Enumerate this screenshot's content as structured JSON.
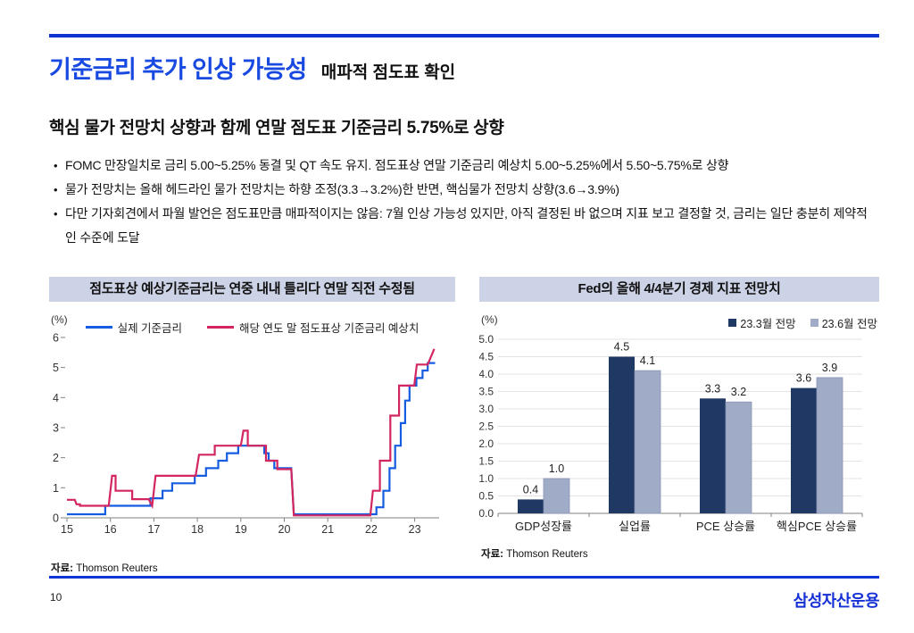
{
  "page": {
    "title": "기준금리 추가 인상 가능성",
    "subtitle": "매파적 점도표 확인",
    "heading": "핵심 물가 전망치 상향과 함께 연말 점도표 기준금리 5.75%로 상향",
    "bullets": [
      "FOMC 만장일치로 금리 5.00~5.25% 동결 및 QT 속도 유지.  점도표상 연말 기준금리 예상치 5.00~5.25%에서 5.50~5.75%로 상향",
      "물가 전망치는 올해 헤드라인 물가 전망치는 하향 조정(3.3→3.2%)한 반면, 핵심물가 전망치 상향(3.6→3.9%)",
      "다만 기자회견에서 파월 발언은 점도표만큼 매파적이지는 않음: 7월 인상 가능성 있지만, 아직 결정된 바 없으며 지표 보고 결정할 것, 금리는 일단 충분히 제약적인 수준에 도달"
    ],
    "page_number": "10",
    "logo_text": "삼성자산운용"
  },
  "colors": {
    "title_blue": "#1849e0",
    "rule_blue": "#0d35d6",
    "logo_blue": "#1531d6",
    "chart_header_bg": "#cdd3e6",
    "grid_gray": "#e3e3e3",
    "axis_gray": "#808080"
  },
  "chart_data": [
    {
      "type": "line",
      "title": "점도표상 예상기준금리는 연중 내내 틀리다 연말 직전 수정됨",
      "unit_label": "(%)",
      "source_label": "자료:",
      "source_name": "Thomson Reuters",
      "xlim": [
        14.95,
        23.6
      ],
      "ylim": [
        0,
        6
      ],
      "yticks": [
        0,
        1,
        2,
        3,
        4,
        5,
        6
      ],
      "xticks": [
        15,
        16,
        17,
        18,
        19,
        20,
        21,
        22,
        23
      ],
      "legend_position": "top-center",
      "grid": false,
      "series": [
        {
          "name": "실제 기준금리",
          "color": "#155ce0",
          "points": [
            [
              15.0,
              0.12
            ],
            [
              15.88,
              0.12
            ],
            [
              15.88,
              0.4
            ],
            [
              16.92,
              0.4
            ],
            [
              16.92,
              0.65
            ],
            [
              17.2,
              0.65
            ],
            [
              17.2,
              0.9
            ],
            [
              17.42,
              0.9
            ],
            [
              17.42,
              1.15
            ],
            [
              17.94,
              1.15
            ],
            [
              17.94,
              1.4
            ],
            [
              18.2,
              1.4
            ],
            [
              18.2,
              1.65
            ],
            [
              18.48,
              1.65
            ],
            [
              18.48,
              1.9
            ],
            [
              18.68,
              1.9
            ],
            [
              18.68,
              2.15
            ],
            [
              18.94,
              2.15
            ],
            [
              18.94,
              2.4
            ],
            [
              19.54,
              2.4
            ],
            [
              19.54,
              2.15
            ],
            [
              19.64,
              2.15
            ],
            [
              19.64,
              1.9
            ],
            [
              19.77,
              1.9
            ],
            [
              19.77,
              1.65
            ],
            [
              20.16,
              1.65
            ],
            [
              20.22,
              0.12
            ],
            [
              22.12,
              0.12
            ],
            [
              22.12,
              0.35
            ],
            [
              22.28,
              0.35
            ],
            [
              22.28,
              0.9
            ],
            [
              22.42,
              0.9
            ],
            [
              22.42,
              1.65
            ],
            [
              22.55,
              1.65
            ],
            [
              22.55,
              2.4
            ],
            [
              22.68,
              2.4
            ],
            [
              22.68,
              3.15
            ],
            [
              22.78,
              3.15
            ],
            [
              22.78,
              3.9
            ],
            [
              22.88,
              3.9
            ],
            [
              22.88,
              4.4
            ],
            [
              23.04,
              4.4
            ],
            [
              23.04,
              4.65
            ],
            [
              23.18,
              4.65
            ],
            [
              23.18,
              4.9
            ],
            [
              23.3,
              4.9
            ],
            [
              23.3,
              5.15
            ],
            [
              23.47,
              5.15
            ]
          ]
        },
        {
          "name": "해당 연도 말 점도표상 기준금리 예상치",
          "color": "#d3265f",
          "points": [
            [
              15.0,
              0.6
            ],
            [
              15.18,
              0.6
            ],
            [
              15.22,
              0.45
            ],
            [
              15.3,
              0.45
            ],
            [
              15.3,
              0.4
            ],
            [
              15.96,
              0.4
            ],
            [
              16.04,
              1.4
            ],
            [
              16.12,
              1.4
            ],
            [
              16.12,
              0.9
            ],
            [
              16.5,
              0.9
            ],
            [
              16.5,
              0.62
            ],
            [
              16.88,
              0.62
            ],
            [
              16.96,
              0.4
            ],
            [
              17.04,
              1.4
            ],
            [
              17.96,
              1.4
            ],
            [
              18.04,
              2.1
            ],
            [
              18.4,
              2.1
            ],
            [
              18.4,
              2.4
            ],
            [
              19.0,
              2.4
            ],
            [
              19.06,
              2.9
            ],
            [
              19.16,
              2.9
            ],
            [
              19.16,
              2.4
            ],
            [
              19.58,
              2.4
            ],
            [
              19.58,
              1.9
            ],
            [
              19.84,
              1.9
            ],
            [
              19.84,
              1.62
            ],
            [
              20.16,
              1.62
            ],
            [
              20.22,
              0.08
            ],
            [
              21.98,
              0.08
            ],
            [
              22.04,
              0.9
            ],
            [
              22.2,
              0.9
            ],
            [
              22.2,
              1.9
            ],
            [
              22.44,
              1.9
            ],
            [
              22.44,
              3.4
            ],
            [
              22.64,
              3.4
            ],
            [
              22.64,
              4.4
            ],
            [
              22.99,
              4.4
            ],
            [
              23.05,
              5.1
            ],
            [
              23.3,
              5.1
            ],
            [
              23.45,
              5.62
            ]
          ]
        }
      ]
    },
    {
      "type": "bar",
      "title": "Fed의 올해 4/4분기 경제 지표 전망치",
      "unit_label": "(%)",
      "source_label": "자료:",
      "source_name": "Thomson Reuters",
      "categories": [
        "GDP성장률",
        "실업률",
        "PCE 상승률",
        "핵심PCE 상승률"
      ],
      "series": [
        {
          "name": "23.3월 전망",
          "color": "#1f3864",
          "values": [
            0.4,
            4.5,
            3.3,
            3.6
          ]
        },
        {
          "name": "23.6월 전망",
          "color": "#a0abc8",
          "values": [
            1.0,
            4.1,
            3.2,
            3.9
          ]
        }
      ],
      "ylim": [
        0,
        5
      ],
      "ytick_step": 0.5,
      "legend_position": "top-right",
      "grid": true
    }
  ]
}
